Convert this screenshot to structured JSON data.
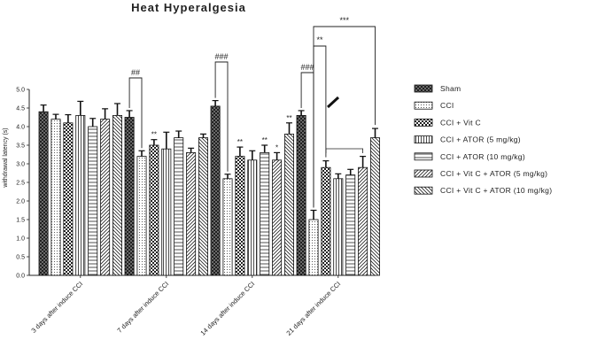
{
  "chart_data": {
    "type": "bar",
    "title": "Heat Hyperalgesia",
    "xlabel": "",
    "ylabel": "withdrawal latency (s)",
    "ylim": [
      0,
      5.0
    ],
    "yticks": [
      "0.0",
      "0.5",
      "1.0",
      "1.5",
      "2.0",
      "2.5",
      "3.0",
      "3.5",
      "4.0",
      "4.5",
      "5.0"
    ],
    "categories": [
      "3 days after induce CCI",
      "7 days after induce CCI",
      "14 days after induce CCI",
      "21 days after induce CCI"
    ],
    "series": [
      {
        "name": "Sham",
        "pattern": "dark",
        "values": [
          4.4,
          4.25,
          4.55,
          4.3
        ],
        "errors": [
          0.18,
          0.18,
          0.15,
          0.13
        ]
      },
      {
        "name": "CCI",
        "pattern": "dots",
        "values": [
          4.2,
          3.2,
          2.6,
          1.5
        ],
        "errors": [
          0.13,
          0.15,
          0.12,
          0.25
        ]
      },
      {
        "name": "CCI + Vit C",
        "pattern": "check",
        "values": [
          4.1,
          3.5,
          3.2,
          2.9
        ],
        "errors": [
          0.22,
          0.15,
          0.25,
          0.18
        ]
      },
      {
        "name": "CCI + ATOR (5 mg/kg)",
        "pattern": "vlines",
        "values": [
          4.3,
          3.4,
          3.1,
          2.6
        ],
        "errors": [
          0.38,
          0.45,
          0.25,
          0.13
        ]
      },
      {
        "name": "CCI + ATOR (10 mg/kg)",
        "pattern": "hlines",
        "values": [
          4.0,
          3.7,
          3.3,
          2.7
        ],
        "errors": [
          0.22,
          0.18,
          0.2,
          0.15
        ]
      },
      {
        "name": "CCI + Vit C + ATOR (5 mg/kg)",
        "pattern": "diag",
        "values": [
          4.2,
          3.3,
          3.1,
          2.9
        ],
        "errors": [
          0.28,
          0.12,
          0.2,
          0.3
        ]
      },
      {
        "name": "CCI + Vit C + ATOR (10 mg/kg)",
        "pattern": "rdiag",
        "values": [
          4.3,
          3.7,
          3.8,
          3.7
        ],
        "errors": [
          0.32,
          0.1,
          0.3,
          0.25
        ]
      }
    ],
    "annotations": {
      "pre_labels": [
        {
          "group": 1,
          "series": 2,
          "text": "**"
        },
        {
          "group": 2,
          "series": 2,
          "text": "**"
        },
        {
          "group": 2,
          "series": 4,
          "text": "**"
        },
        {
          "group": 2,
          "series": 5,
          "text": "*"
        },
        {
          "group": 2,
          "series": 6,
          "text": "**"
        }
      ],
      "brackets_hash": [
        {
          "group": 1,
          "text": "##"
        },
        {
          "group": 2,
          "text": "###"
        },
        {
          "group": 3,
          "text": "###"
        }
      ],
      "brackets_star": [
        {
          "group": 3,
          "to_series": 2,
          "text": "**"
        },
        {
          "group": 3,
          "to_series": 6,
          "text": "***"
        }
      ]
    }
  }
}
